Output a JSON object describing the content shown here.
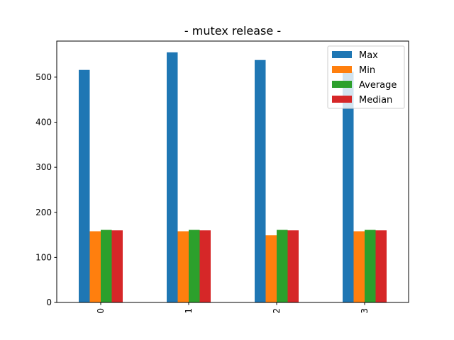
{
  "chart_data": {
    "type": "bar",
    "title": "- mutex release -",
    "xlabel": "",
    "ylabel": "",
    "categories": [
      "0",
      "1",
      "2",
      "3"
    ],
    "ylim": [
      0,
      580
    ],
    "yticks": [
      0,
      100,
      200,
      300,
      400,
      500
    ],
    "legend_position": "top-right",
    "grid": false,
    "series": [
      {
        "name": "Max",
        "color": "#1f77b4",
        "values": [
          516,
          555,
          538,
          512
        ]
      },
      {
        "name": "Min",
        "color": "#ff7f0e",
        "values": [
          158,
          158,
          149,
          158
        ]
      },
      {
        "name": "Average",
        "color": "#2ca02c",
        "values": [
          161,
          161,
          161,
          161
        ]
      },
      {
        "name": "Median",
        "color": "#d62728",
        "values": [
          160,
          160,
          160,
          160
        ]
      }
    ]
  }
}
